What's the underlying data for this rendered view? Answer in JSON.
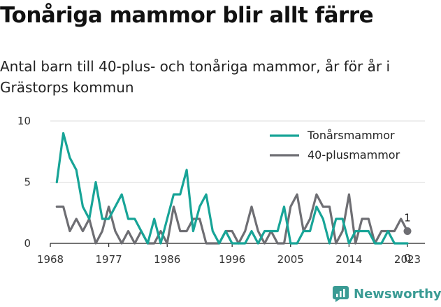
{
  "title": "Tonåriga mammor blir allt färre",
  "subtitle": "Antal barn till 40-plus- och tonåriga mammor, år för år i Grästorps kommun",
  "brand": {
    "name": "Newsworthy",
    "icon": "newsworthy-logo-icon",
    "color": "#3a9b94"
  },
  "chart_data": {
    "type": "line",
    "x": [
      1969,
      1970,
      1971,
      1972,
      1973,
      1974,
      1975,
      1976,
      1977,
      1978,
      1979,
      1980,
      1981,
      1982,
      1983,
      1984,
      1985,
      1986,
      1987,
      1988,
      1989,
      1990,
      1991,
      1992,
      1993,
      1994,
      1995,
      1996,
      1997,
      1998,
      1999,
      2000,
      2001,
      2002,
      2003,
      2004,
      2005,
      2006,
      2007,
      2008,
      2009,
      2010,
      2011,
      2012,
      2013,
      2014,
      2015,
      2016,
      2017,
      2018,
      2019,
      2020,
      2021,
      2022,
      2023
    ],
    "series": [
      {
        "name": "Tonårsmammor",
        "color": "#17a497",
        "values": [
          5,
          9,
          7,
          6,
          3,
          2,
          5,
          2,
          2,
          3,
          4,
          2,
          2,
          1,
          0,
          2,
          0,
          2,
          4,
          4,
          6,
          1,
          3,
          4,
          1,
          0,
          1,
          0,
          0,
          0,
          1,
          0,
          1,
          1,
          1,
          3,
          0,
          0,
          1,
          1,
          3,
          2,
          0,
          2,
          2,
          0,
          1,
          1,
          1,
          0,
          0,
          1,
          0,
          0,
          0
        ]
      },
      {
        "name": "40-plusmammor",
        "color": "#6e6e73",
        "values": [
          3,
          3,
          1,
          2,
          1,
          2,
          0,
          1,
          3,
          1,
          0,
          1,
          0,
          1,
          0,
          0,
          1,
          0,
          3,
          1,
          1,
          2,
          2,
          0,
          0,
          0,
          1,
          1,
          0,
          1,
          3,
          1,
          0,
          1,
          0,
          0,
          3,
          4,
          1,
          2,
          4,
          3,
          3,
          0,
          1,
          4,
          0,
          2,
          2,
          0,
          1,
          1,
          1,
          2,
          1
        ]
      }
    ],
    "end_labels": [
      {
        "series": "40-plusmammor",
        "value": "1"
      },
      {
        "series": "Tonårsmammor",
        "value": "0"
      }
    ],
    "x_ticks": [
      1968,
      1977,
      1986,
      1996,
      2005,
      2014,
      2023
    ],
    "y_ticks": [
      0,
      5,
      10
    ],
    "xlim": [
      1968,
      2023
    ],
    "ylim": [
      0,
      10
    ],
    "grid": "horizontal",
    "legend_position": "top-right",
    "xlabel": "",
    "ylabel": ""
  }
}
